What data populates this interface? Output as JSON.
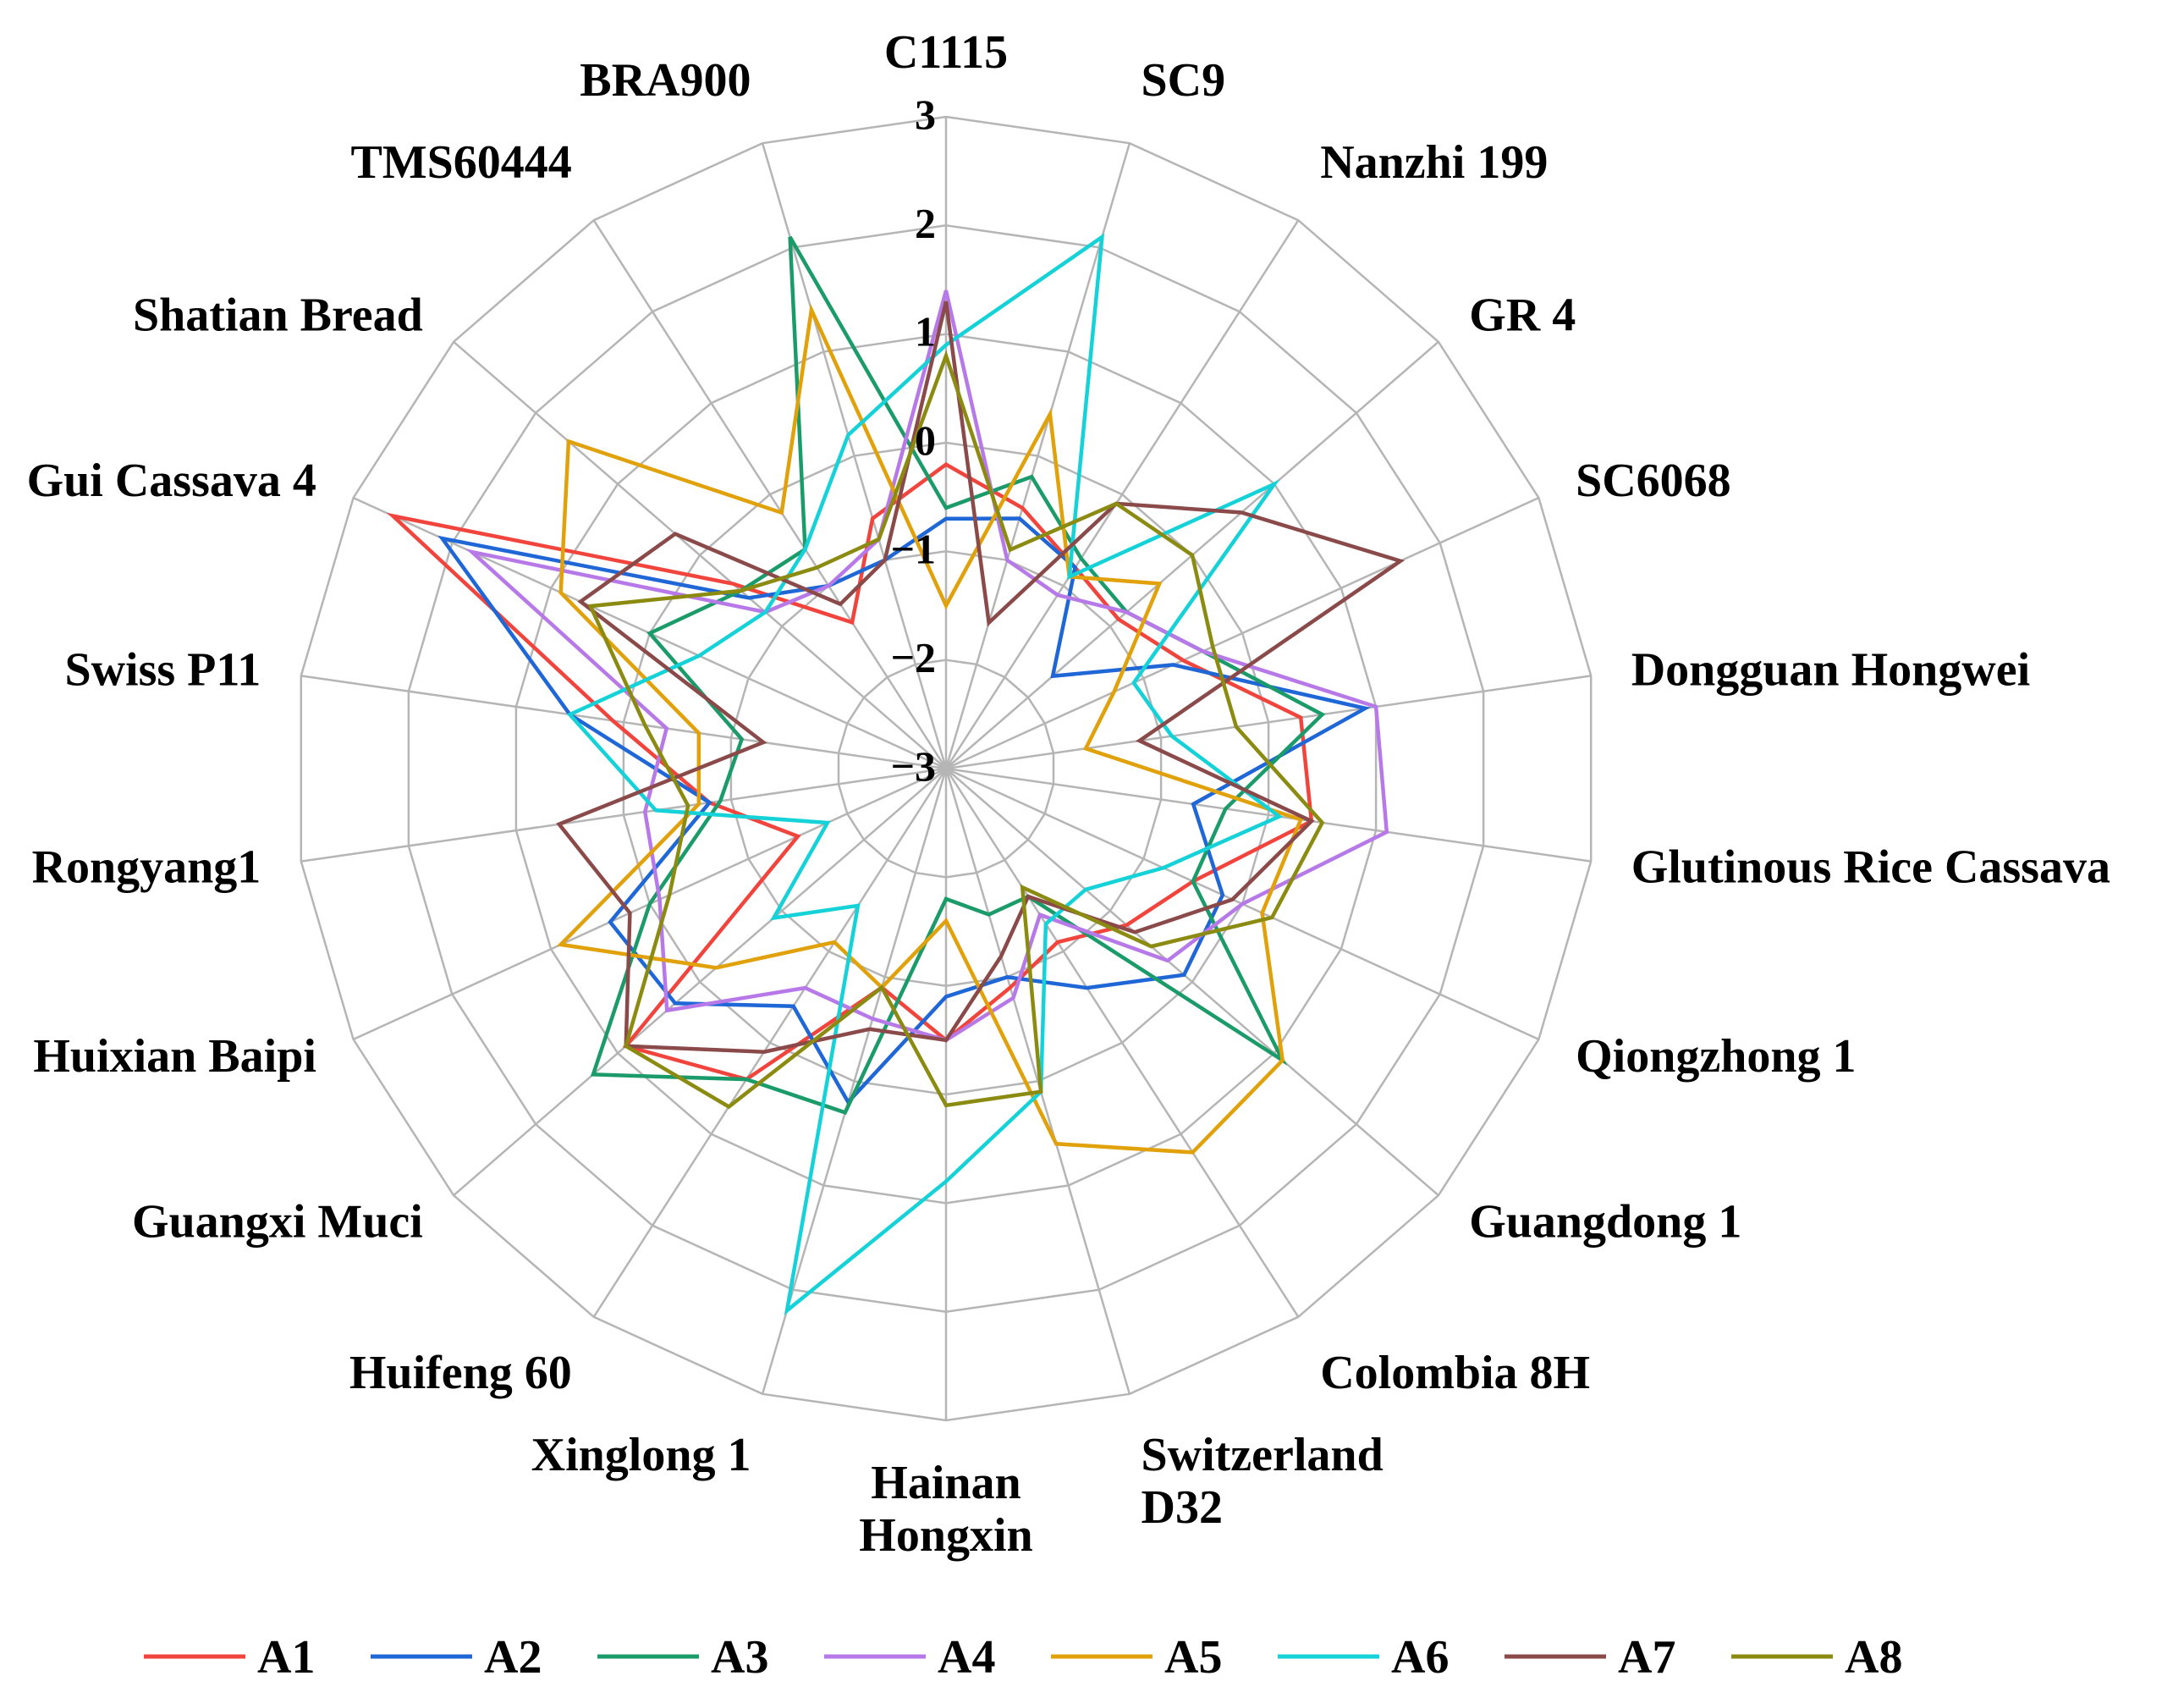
{
  "chart_data": {
    "type": "radar",
    "title": "",
    "axis": {
      "min": -3,
      "max": 3,
      "ticks": [
        "3",
        "2",
        "1",
        "0",
        "−1",
        "−2",
        "−3"
      ],
      "tick_values": [
        3,
        2,
        1,
        0,
        -1,
        -2,
        -3
      ]
    },
    "legend_position": "bottom",
    "categories": [
      "C1115",
      "SC9",
      "Nanzhi 199",
      "GR 4",
      "SC6068",
      "Dongguan Hongwei",
      "Glutinous Rice Cassava",
      "Qiongzhong 1",
      "Guangdong 1",
      "Colombia 8H",
      "Switzerland D32",
      "Hainan Hongxin",
      "Xinglong 1",
      "Huifeng 60",
      "Guangxi Muci",
      "Huixian Baipi",
      "Rongyang1",
      "Swiss P11",
      "Gui Cassava 4",
      "Shatian Bread",
      "TMS60444",
      "BRA900"
    ],
    "series": [
      {
        "name": "A1",
        "color": "#f0443c",
        "values": [
          -0.2,
          -0.5,
          -0.8,
          -0.9,
          -0.6,
          0.3,
          0.4,
          -0.5,
          -0.8,
          -1.1,
          -0.9,
          -0.5,
          -0.9,
          0.4,
          0.9,
          -1.5,
          -0.8,
          0.1,
          2.6,
          -0.4,
          -1.4,
          -0.6
        ]
      },
      {
        "name": "A2",
        "color": "#1f66d6",
        "values": [
          -0.7,
          -0.6,
          -0.8,
          -1.7,
          -0.7,
          0.9,
          -0.7,
          -0.2,
          -0.1,
          -0.6,
          -1.0,
          -0.9,
          0.2,
          -0.4,
          0.3,
          0.4,
          -0.8,
          0.5,
          2.1,
          -0.6,
          -1.0,
          -1.0
        ]
      },
      {
        "name": "A3",
        "color": "#1b9b6a",
        "values": [
          -0.6,
          -0.2,
          -0.7,
          -0.8,
          -0.4,
          0.5,
          -0.4,
          -0.5,
          1.1,
          -1.6,
          -1.6,
          -1.8,
          0.3,
          0.4,
          1.3,
          0.0,
          -0.9,
          -1.1,
          0.0,
          -0.5,
          -0.6,
          2.1
        ]
      },
      {
        "name": "A4",
        "color": "#b779e8",
        "values": [
          1.4,
          -1.0,
          -1.1,
          -0.8,
          -0.4,
          1.0,
          1.1,
          0.0,
          -0.3,
          -1.4,
          -0.8,
          -0.5,
          -0.6,
          -0.6,
          0.4,
          -0.1,
          -0.2,
          -0.4,
          1.8,
          -0.8,
          -1.0,
          -0.8
        ]
      },
      {
        "name": "A5",
        "color": "#e0a10a",
        "values": [
          -1.5,
          0.4,
          -0.9,
          -0.4,
          -1.3,
          -1.7,
          0.3,
          0.2,
          1.1,
          1.2,
          0.6,
          -1.6,
          -0.9,
          -1.1,
          -0.2,
          0.9,
          -0.7,
          -0.7,
          0.9,
          1.6,
          -0.2,
          1.4
        ]
      },
      {
        "name": "A6",
        "color": "#15d1d8",
        "values": [
          0.9,
          2.1,
          -0.9,
          1.0,
          -1.1,
          -0.9,
          0.1,
          -0.8,
          -1.3,
          -1.3,
          0.1,
          0.8,
          2.2,
          -1.5,
          -0.9,
          -1.8,
          -0.3,
          0.5,
          -0.5,
          -0.8,
          -0.6,
          0.2
        ]
      },
      {
        "name": "A7",
        "color": "#8b4a4a",
        "values": [
          1.3,
          -1.6,
          -0.1,
          0.6,
          1.6,
          -1.2,
          0.4,
          -0.1,
          -0.7,
          -1.6,
          -1.2,
          -0.5,
          -0.5,
          0.1,
          0.9,
          0.2,
          0.6,
          -1.3,
          0.7,
          0.3,
          -1.2,
          -1.0
        ]
      },
      {
        "name": "A8",
        "color": "#8b8b12",
        "values": [
          0.8,
          -0.9,
          -0.1,
          0.0,
          -0.3,
          -0.3,
          0.5,
          0.3,
          -0.5,
          -1.7,
          0.1,
          0.1,
          -0.9,
          0.7,
          0.9,
          -0.2,
          -0.6,
          -0.2,
          0.6,
          -0.5,
          -0.8,
          -0.8
        ]
      }
    ]
  }
}
